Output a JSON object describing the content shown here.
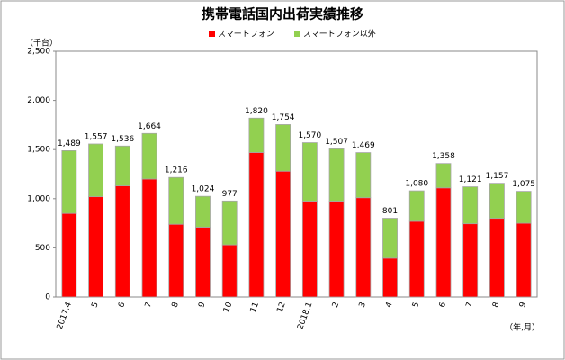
{
  "chart_data": {
    "type": "bar",
    "stacked": true,
    "title": "携帯電話国内出荷実績推移",
    "y_label": "（千台）",
    "x_label": "（年,月）",
    "legend": "top",
    "categories": [
      "2017.4",
      "5",
      "6",
      "7",
      "8",
      "9",
      "10",
      "11",
      "12",
      "2018.1",
      "2",
      "3",
      "4",
      "5",
      "6",
      "7",
      "8",
      "9"
    ],
    "series": [
      {
        "name": "スマートフォン",
        "color": "#ff0000",
        "values": [
          850,
          1020,
          1130,
          1200,
          740,
          710,
          530,
          1470,
          1280,
          975,
          975,
          1010,
          395,
          770,
          1110,
          745,
          800,
          750
        ]
      },
      {
        "name": "スマートフォン以外",
        "color": "#92d050",
        "values": [
          639,
          537,
          406,
          464,
          476,
          314,
          447,
          350,
          474,
          595,
          532,
          459,
          406,
          310,
          248,
          376,
          357,
          325
        ]
      }
    ],
    "totals": [
      1489,
      1557,
      1536,
      1664,
      1216,
      1024,
      977,
      1820,
      1754,
      1570,
      1507,
      1469,
      801,
      1080,
      1358,
      1121,
      1157,
      1075
    ],
    "total_labels": [
      "1,489",
      "1,557",
      "1,536",
      "1,664",
      "1,216",
      "1,024",
      "977",
      "1,820",
      "1,754",
      "1,570",
      "1,507",
      "1,469",
      "801",
      "1,080",
      "1,358",
      "1,121",
      "1,157",
      "1,075"
    ],
    "ylim": [
      0,
      2500
    ],
    "yticks": [
      0,
      500,
      {
        "value": 1000,
        "label": "1,000"
      },
      {
        "value": 1500,
        "label": "1,500"
      },
      {
        "value": 2000,
        "label": "2,000"
      },
      {
        "value": 2500,
        "label": "2,500"
      }
    ]
  }
}
